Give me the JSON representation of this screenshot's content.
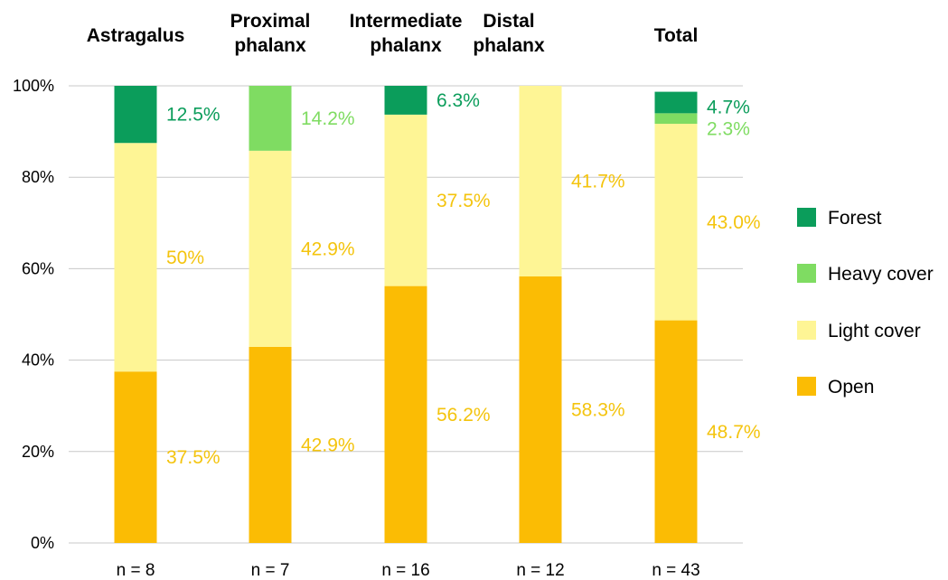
{
  "chart_data": {
    "type": "bar",
    "stacked": true,
    "categories": [
      "Astragalus",
      "Proximal phalanx",
      "Intermediate phalanx",
      "Distal phalanx",
      "Total"
    ],
    "category_title_lines": [
      [
        "Astragalus"
      ],
      [
        "Proximal",
        "phalanx"
      ],
      [
        "Intermediate",
        "phalanx"
      ],
      [
        "Distal",
        "phalanx"
      ],
      [
        "Total"
      ]
    ],
    "sample_sizes": [
      "n = 8",
      "n = 7",
      "n = 16",
      "n = 12",
      "n = 43"
    ],
    "series": [
      {
        "name": "Open",
        "color": "#FBBC04",
        "label_color": "#F4C40E",
        "values": [
          37.5,
          42.9,
          56.2,
          58.3,
          48.7
        ],
        "labels": [
          "37.5%",
          "42.9%",
          "56.2%",
          "58.3%",
          "48.7%"
        ]
      },
      {
        "name": "Light cover",
        "color": "#FEF595",
        "label_color": "#F4C40E",
        "values": [
          50.0,
          42.9,
          37.5,
          41.7,
          43.0
        ],
        "labels": [
          "50%",
          "42.9%",
          "37.5%",
          "41.7%",
          "43.0%"
        ]
      },
      {
        "name": "Heavy cover",
        "color": "#7FDC62",
        "label_color": "#7FDC62",
        "values": [
          0,
          14.2,
          0,
          0,
          2.3
        ],
        "labels": [
          "",
          "14.2%",
          "",
          "",
          "2.3%"
        ]
      },
      {
        "name": "Forest",
        "color": "#0B9D5B",
        "label_color": "#0B9D5B",
        "values": [
          12.5,
          0,
          6.3,
          0,
          4.7
        ],
        "labels": [
          "12.5%",
          "",
          "6.3%",
          "",
          "4.7%"
        ]
      }
    ],
    "legend_order": [
      "Forest",
      "Heavy cover",
      "Light cover",
      "Open"
    ],
    "legend_position": "right",
    "yticks": [
      "0%",
      "20%",
      "40%",
      "60%",
      "80%",
      "100%"
    ],
    "ylim": [
      0,
      100
    ],
    "grid": true
  }
}
